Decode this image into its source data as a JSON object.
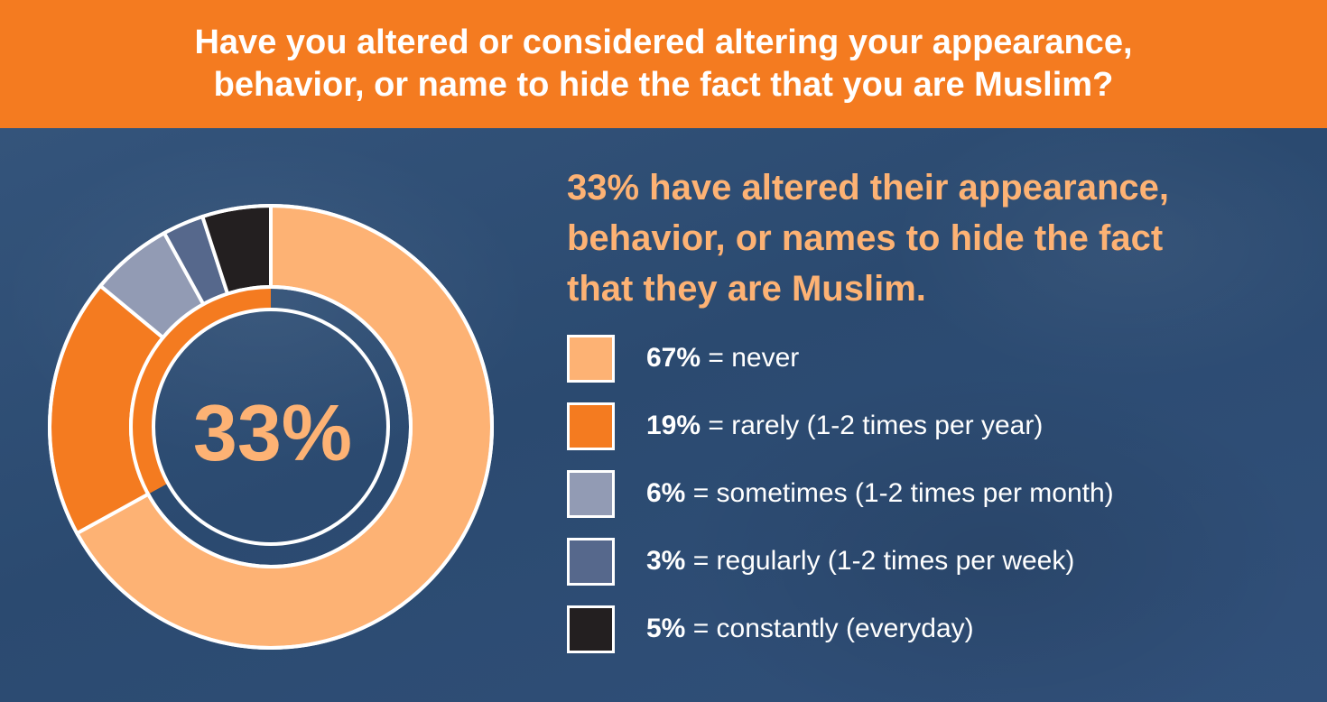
{
  "header": {
    "title": "Have you altered or considered altering your appearance,\nbehavior, or name to hide the fact that you are Muslim?"
  },
  "headline": "33% have altered their appearance,\nbehavior, or names to hide the fact\nthat they are Muslim.",
  "center_label": "33%",
  "colors": {
    "header_bg": "#f47b20",
    "background": "#2f4d72",
    "accent_text": "#fdb274"
  },
  "chart_data": {
    "type": "pie",
    "style": "donut",
    "slices": [
      {
        "label": "never",
        "value": 67,
        "color": "#fdb274"
      },
      {
        "label": "rarely (1-2 times per year)",
        "value": 19,
        "color": "#f47b20"
      },
      {
        "label": "sometimes (1-2 times per month)",
        "value": 6,
        "color": "#929bb4"
      },
      {
        "label": "regularly (1-2 times per week)",
        "value": 3,
        "color": "#56688c"
      },
      {
        "label": "constantly (everyday)",
        "value": 5,
        "color": "#231f20"
      }
    ],
    "inner_highlight": {
      "value": 33,
      "color": "#f47b20"
    }
  },
  "legend": [
    {
      "pct": "67%",
      "text": " = never"
    },
    {
      "pct": "19%",
      "text": " = rarely (1-2 times per year)"
    },
    {
      "pct": "6%",
      "text": " = sometimes (1-2 times per month)"
    },
    {
      "pct": "3%",
      "text": " = regularly (1-2 times per week)"
    },
    {
      "pct": "5%",
      "text": " = constantly (everyday)"
    }
  ]
}
